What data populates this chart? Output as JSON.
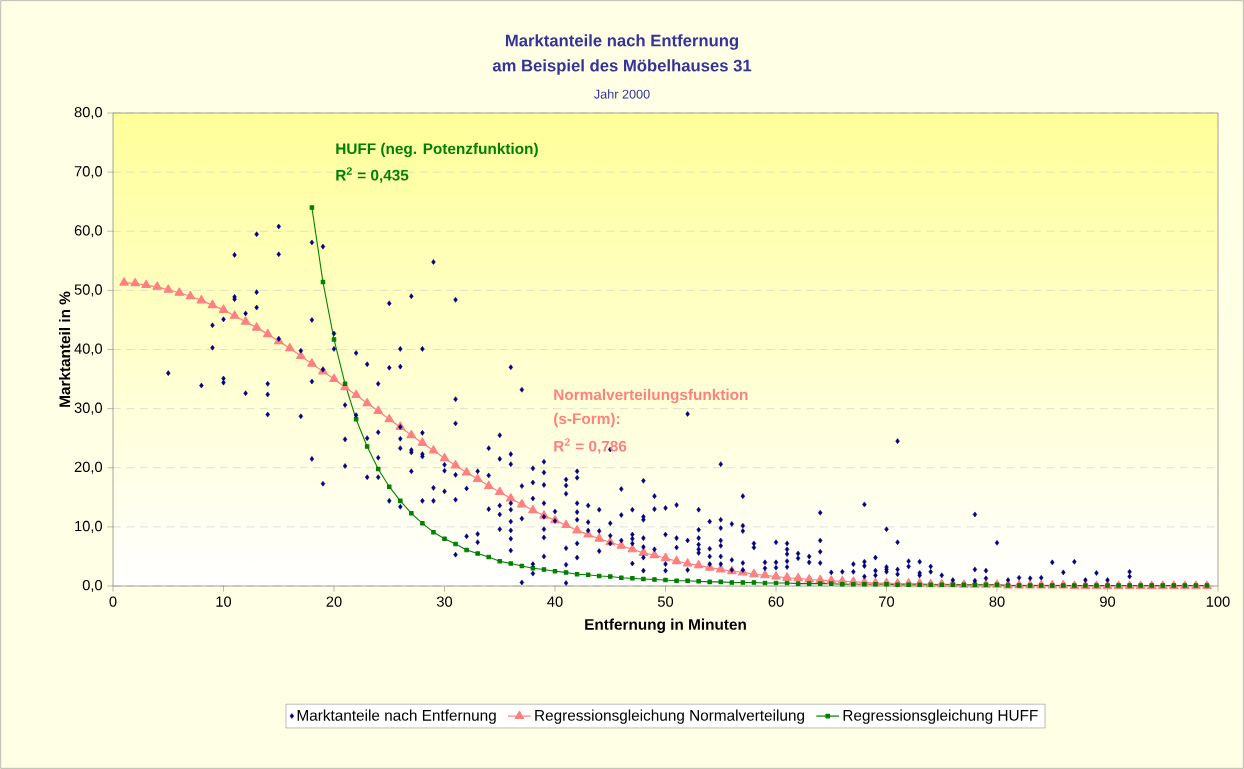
{
  "chart_data": {
    "type": "scatter",
    "title": "Marktanteile nach Entfernung",
    "subtitle": "am Beispiel des Möbelhauses 31",
    "annotations": [
      "Jahr 2000",
      "HUFF (neg. Potenzfunktion)",
      "R$^{2}$ = 0,435",
      "Normalverteilungsfunktion",
      "(s-Form):",
      "R$^{2}$ = 0,786"
    ],
    "xlabel": "Entfernung in Minuten",
    "ylabel": "Marktanteil in %",
    "xlim": [
      0,
      100
    ],
    "ylim": [
      0,
      80
    ],
    "xticks": [
      0,
      10,
      20,
      30,
      40,
      50,
      60,
      70,
      80,
      90,
      100
    ],
    "yticks": [
      {
        "value": 0,
        "label": "0,0"
      },
      {
        "value": 10,
        "label": "10,0"
      },
      {
        "value": 20,
        "label": "20,0"
      },
      {
        "value": 30,
        "label": "30,0"
      },
      {
        "value": 40,
        "label": "40,0"
      },
      {
        "value": 50,
        "label": "50,0"
      },
      {
        "value": 60,
        "label": "60,0"
      },
      {
        "value": 70,
        "label": "70,0"
      },
      {
        "value": 80,
        "label": "80,0"
      }
    ],
    "grid": "y",
    "legend": "bottom",
    "series": [
      {
        "name": "Marktanteile nach Entfernung",
        "marker": "diamond",
        "color": "#000080",
        "x": [
          5,
          8,
          9,
          9,
          10,
          10,
          10,
          11,
          11,
          11,
          12,
          12,
          13,
          13,
          13,
          14,
          14,
          14,
          15,
          15,
          15,
          17,
          17,
          18,
          18,
          18,
          18,
          19,
          19,
          19,
          20,
          20,
          21,
          21,
          21,
          22,
          22,
          23,
          23,
          23,
          24,
          24,
          24,
          24,
          25,
          25,
          25,
          26,
          26,
          26,
          26,
          26,
          26,
          27,
          27,
          27,
          27,
          28,
          28,
          28,
          28,
          28,
          29,
          29,
          29,
          30,
          30,
          30,
          31,
          31,
          31,
          31,
          31,
          31,
          32,
          32,
          33,
          33,
          33,
          34,
          34,
          34,
          35,
          35,
          35,
          35,
          35,
          36,
          36,
          36,
          36,
          36,
          36,
          36,
          36,
          36,
          37,
          37,
          37,
          37,
          38,
          38,
          38,
          38,
          38,
          39,
          39,
          39,
          39,
          39,
          39,
          39,
          39,
          40,
          40,
          41,
          41,
          41,
          41,
          41,
          41,
          42,
          42,
          42,
          42,
          42,
          42,
          42,
          43,
          43,
          43,
          44,
          44,
          44,
          45,
          45,
          45,
          45,
          46,
          46,
          46,
          47,
          47,
          47,
          47,
          47,
          48,
          48,
          48,
          48,
          48,
          48,
          48,
          49,
          49,
          49,
          50,
          50,
          50,
          50,
          51,
          51,
          51,
          52,
          52,
          52,
          53,
          53,
          53,
          53,
          53,
          53,
          54,
          54,
          54,
          54,
          55,
          55,
          55,
          55,
          55,
          55,
          55,
          56,
          56,
          56,
          57,
          57,
          57,
          57,
          57,
          58,
          58,
          59,
          59,
          60,
          60,
          60,
          61,
          61,
          61,
          61,
          61,
          62,
          62,
          63,
          63,
          64,
          64,
          64,
          64,
          65,
          66,
          67,
          67,
          68,
          68,
          68,
          68,
          69,
          69,
          69,
          70,
          70,
          70,
          70,
          71,
          71,
          71,
          71,
          72,
          72,
          73,
          73,
          73,
          74,
          74,
          75,
          76,
          78,
          78,
          78,
          79,
          79,
          80,
          81,
          82,
          83,
          84,
          85,
          86,
          87,
          88,
          89,
          90,
          92,
          92
        ],
        "values": [
          36,
          33.9,
          44.1,
          40.3,
          45.1,
          35.1,
          34.4,
          56,
          48.9,
          48.5,
          46.1,
          32.6,
          59.5,
          49.7,
          47.1,
          34.2,
          32.4,
          29,
          60.8,
          56.1,
          41.8,
          39.8,
          28.7,
          58.1,
          45,
          34.6,
          21.5,
          57.4,
          36.6,
          17.3,
          42.7,
          40.1,
          30.6,
          24.8,
          20.3,
          39.4,
          28.9,
          37.5,
          25,
          18.4,
          34.2,
          26,
          21.7,
          18.4,
          47.8,
          36.9,
          14.4,
          40.1,
          37.1,
          26.9,
          24.9,
          23.3,
          13.4,
          49,
          23,
          22.6,
          19.4,
          40.1,
          25.9,
          22.3,
          21.9,
          14.4,
          54.8,
          16.6,
          14.4,
          20.5,
          19.5,
          16,
          48.4,
          31.6,
          27.5,
          18.8,
          14.6,
          5.3,
          16.5,
          8.4,
          19.4,
          8.8,
          7.4,
          23.3,
          18.7,
          13,
          25.5,
          21.5,
          13.6,
          12.1,
          9.6,
          37,
          22.3,
          20.6,
          14,
          12.9,
          10.9,
          9.4,
          8,
          6,
          33.2,
          16.9,
          11.4,
          0.6,
          19.9,
          17.5,
          14.8,
          3.7,
          2.1,
          21,
          19.2,
          17.1,
          14,
          11.7,
          9.6,
          8.2,
          5,
          12.6,
          11,
          18,
          17,
          15.6,
          6.4,
          3.6,
          0.5,
          19.4,
          18.3,
          14,
          12.5,
          11.2,
          7.2,
          4.8,
          13.6,
          10.8,
          9.4,
          12.9,
          9.3,
          5.9,
          23.1,
          10.6,
          8.5,
          7.2,
          16.4,
          12,
          7.7,
          12.9,
          8.7,
          8,
          7.2,
          3.8,
          17.8,
          11.7,
          11.2,
          8.1,
          6.6,
          4.8,
          2.6,
          15.2,
          13,
          6.2,
          13.2,
          8.7,
          3.7,
          2.6,
          13.7,
          8.1,
          6.5,
          29.1,
          7.7,
          2.7,
          12.9,
          9.5,
          8.1,
          7,
          6.2,
          5.6,
          10.9,
          6.3,
          5,
          3.7,
          20.6,
          11.2,
          9.8,
          7.7,
          6.8,
          5,
          3.7,
          10.5,
          4.4,
          2.7,
          15.2,
          10.2,
          9.3,
          3.9,
          2.7,
          7.2,
          6.5,
          4,
          3,
          7.4,
          4,
          3.1,
          7.2,
          6.2,
          5.4,
          4.2,
          3.2,
          5.5,
          4.7,
          5,
          4,
          12.4,
          7.7,
          5.8,
          3.9,
          2.3,
          2.4,
          3.7,
          2.4,
          13.8,
          4.1,
          3.4,
          1.6,
          4.8,
          2.6,
          1.8,
          9.6,
          3.2,
          2.8,
          2.4,
          24.5,
          7.4,
          2.8,
          2,
          4.2,
          3.3,
          4.1,
          2.2,
          1.8,
          3.3,
          2.4,
          1.8,
          1,
          12.1,
          2.8,
          0.9,
          2.6,
          1.3,
          7.3,
          1,
          1.4,
          1.3,
          1.4,
          4,
          2.3,
          4.1,
          1,
          2.2,
          1,
          2.4,
          1.6
        ]
      },
      {
        "name": "Regressionsgleichung Normalverteilung",
        "type": "line",
        "marker": "triangle",
        "color": "#ff8080",
        "x": [
          1,
          2,
          3,
          4,
          5,
          6,
          7,
          8,
          9,
          10,
          11,
          12,
          13,
          14,
          15,
          16,
          17,
          18,
          19,
          20,
          21,
          22,
          23,
          24,
          25,
          26,
          27,
          28,
          29,
          30,
          31,
          32,
          33,
          34,
          35,
          36,
          37,
          38,
          39,
          40,
          41,
          42,
          43,
          44,
          45,
          46,
          47,
          48,
          49,
          50,
          51,
          52,
          53,
          54,
          55,
          56,
          57,
          58,
          59,
          60,
          61,
          62,
          63,
          64,
          65,
          66,
          67,
          68,
          69,
          70,
          71,
          72,
          73,
          74,
          75,
          76,
          77,
          78,
          79,
          80,
          81,
          82,
          83,
          84,
          85,
          86,
          87,
          88,
          89,
          90,
          91,
          92,
          93,
          94,
          95,
          96,
          97,
          98,
          99
        ],
        "values": [
          51.3,
          51.2,
          50.9,
          50.6,
          50.1,
          49.6,
          49.0,
          48.3,
          47.5,
          46.7,
          45.7,
          44.7,
          43.7,
          42.6,
          41.4,
          40.2,
          38.9,
          37.6,
          36.3,
          35.0,
          33.6,
          32.3,
          30.9,
          29.6,
          28.2,
          26.9,
          25.5,
          24.2,
          22.9,
          21.6,
          20.4,
          19.2,
          18.1,
          16.9,
          15.9,
          14.8,
          13.8,
          12.8,
          11.9,
          11.1,
          10.3,
          9.4,
          8.7,
          8.0,
          7.4,
          6.8,
          6.2,
          5.6,
          5.2,
          4.7,
          4.2,
          3.8,
          3.5,
          3.1,
          2.8,
          2.5,
          2.3,
          2.0,
          1.8,
          1.6,
          1.4,
          1.3,
          1.1,
          1.0,
          0.9,
          0.8,
          0.7,
          0.6,
          0.5,
          0.5,
          0.4,
          0.4,
          0.4,
          0.3,
          0.3,
          0.3,
          0.2,
          0.2,
          0.2,
          0.2,
          0.1,
          0.1,
          0.1,
          0.1,
          0.1,
          0.1,
          0,
          0,
          0,
          0,
          0,
          0,
          0,
          0,
          0,
          0,
          0,
          0,
          0
        ]
      },
      {
        "name": "Regressionsgleichung HUFF",
        "type": "line",
        "marker": "square",
        "color": "#008000",
        "x": [
          18,
          19,
          20,
          21,
          22,
          23,
          24,
          25,
          26,
          27,
          28,
          29,
          30,
          31,
          32,
          33,
          34,
          35,
          36,
          37,
          38,
          39,
          40,
          41,
          42,
          43,
          44,
          45,
          46,
          47,
          48,
          49,
          50,
          51,
          52,
          53,
          54,
          55,
          56,
          57,
          58,
          59,
          60,
          61,
          62,
          63,
          64,
          65,
          66,
          67,
          68,
          69,
          70,
          71,
          72,
          73,
          74,
          75,
          76,
          77,
          78,
          79,
          80,
          81,
          82,
          83,
          84,
          85,
          86,
          87,
          88,
          89,
          90,
          91,
          92,
          93,
          94,
          95,
          96,
          97,
          98,
          99
        ],
        "values": [
          64.0,
          51.4,
          41.7,
          34.2,
          28.2,
          23.6,
          19.8,
          16.8,
          14.4,
          12.3,
          10.6,
          9.1,
          8.0,
          7.1,
          6.1,
          5.5,
          4.9,
          4.2,
          3.8,
          3.4,
          3.0,
          2.8,
          2.5,
          2.3,
          2.0,
          1.9,
          1.7,
          1.6,
          1.4,
          1.3,
          1.2,
          1.1,
          1.0,
          0.9,
          0.9,
          0.8,
          0.7,
          0.7,
          0.6,
          0.6,
          0.6,
          0.5,
          0.5,
          0.5,
          0.4,
          0.4,
          0.4,
          0.4,
          0.3,
          0.3,
          0.3,
          0.3,
          0.3,
          0.2,
          0.2,
          0.2,
          0.2,
          0.2,
          0.2,
          0.2,
          0.2,
          0.2,
          0.2,
          0.1,
          0.1,
          0.1,
          0.1,
          0.1,
          0.1,
          0.1,
          0.1,
          0.1,
          0.1,
          0.1,
          0.1,
          0.1,
          0.1,
          0.1,
          0.1,
          0.1,
          0.1,
          0.1
        ]
      }
    ]
  }
}
